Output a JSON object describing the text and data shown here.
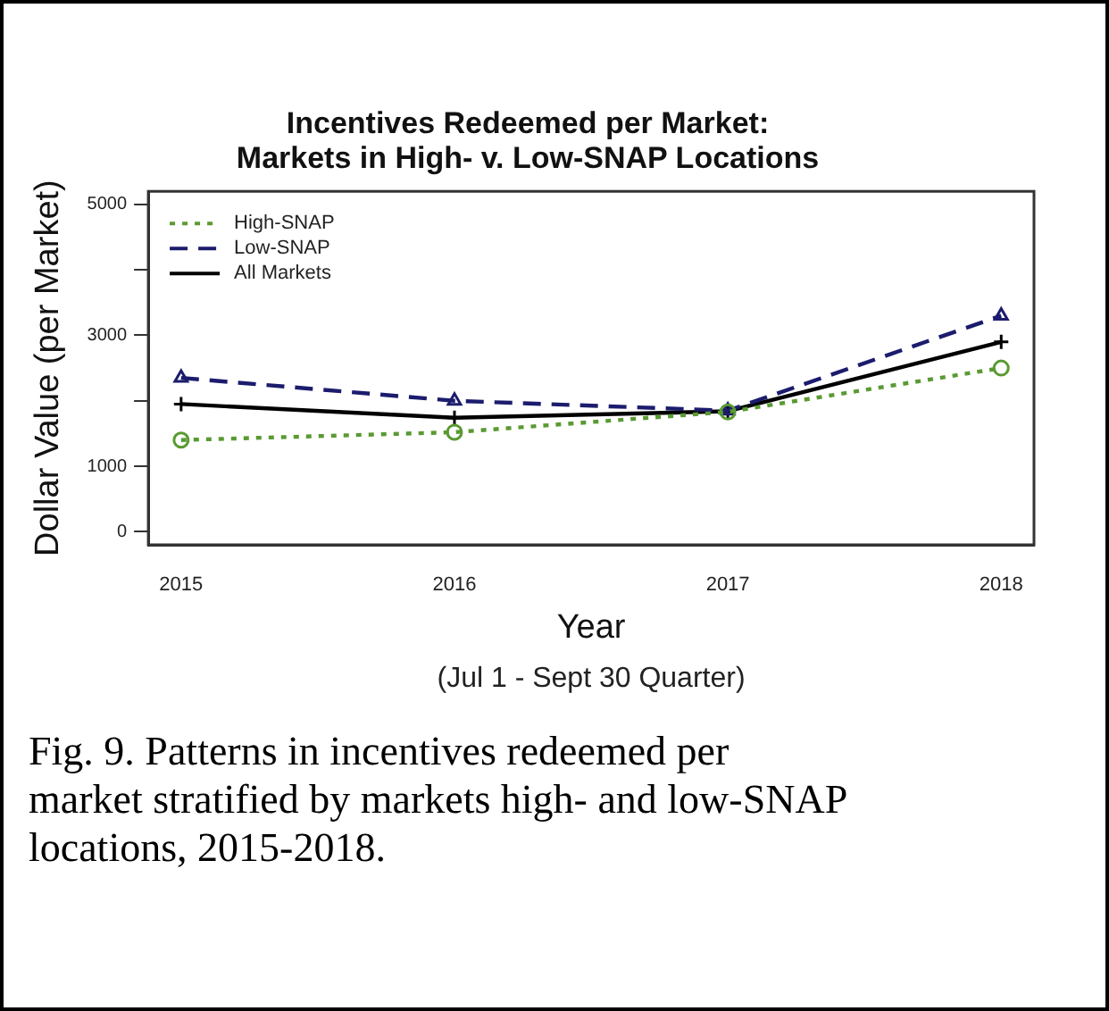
{
  "chart_data": {
    "type": "line",
    "title": "Incentives Redeemed per Market:\nMarkets in High- v. Low-SNAP Locations",
    "xlabel": "Year",
    "ylabel": "Dollar Value (per Market)",
    "x": [
      2015,
      2016,
      2017,
      2018
    ],
    "xlim": [
      2014.88,
      2018.12
    ],
    "xticks": [
      2015,
      2016,
      2017,
      2018
    ],
    "ylim": [
      -200,
      5200
    ],
    "yticks": [
      0,
      1000,
      {
        "value": 2000,
        "label": null
      },
      3000,
      {
        "value": 4000,
        "label": null
      },
      5000
    ],
    "series": [
      {
        "name": "High-SNAP",
        "color": "#5a9a32",
        "values": [
          1400,
          1520,
          1830,
          2500
        ],
        "line_style": "dotted",
        "marker": "circle"
      },
      {
        "name": "Low-SNAP",
        "color": "#1c1c6e",
        "values": [
          2350,
          2000,
          1850,
          3300
        ],
        "line_style": "dashed",
        "marker": "triangle"
      },
      {
        "name": "All Markets",
        "color": "#000000",
        "values": [
          1950,
          1740,
          1840,
          2900
        ],
        "line_style": "solid",
        "marker": "cross"
      }
    ],
    "legend": "top left",
    "grid": false,
    "annotations": [
      "(Jul 1 - Sept 30 Quarter)",
      "Fig. 9. Patterns in incentives redeemed per market stratified by markets high- and low-SNAP locations, 2015-2018."
    ]
  }
}
